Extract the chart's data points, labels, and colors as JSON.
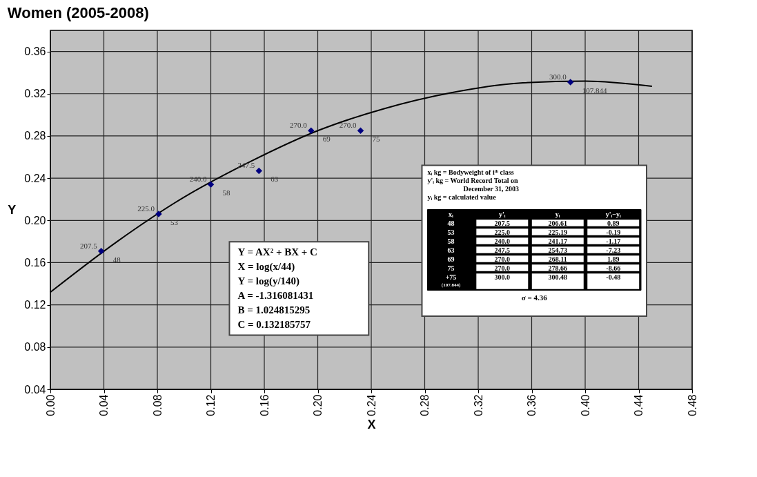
{
  "chart_data": {
    "type": "scatter",
    "title": "Women (2005-2008)",
    "xlabel": "X",
    "ylabel": "Y",
    "xlim": [
      0,
      0.48
    ],
    "ylim": [
      0.04,
      0.38
    ],
    "xticks": [
      {
        "value": 0,
        "label": "0.00"
      },
      {
        "value": 0.04,
        "label": "0.04"
      },
      {
        "value": 0.08,
        "label": "0.08"
      },
      {
        "value": 0.12,
        "label": "0.12"
      },
      {
        "value": 0.16,
        "label": "0.16"
      },
      {
        "value": 0.2,
        "label": "0.20"
      },
      {
        "value": 0.24,
        "label": "0.24"
      },
      {
        "value": 0.28,
        "label": "0.28"
      },
      {
        "value": 0.32,
        "label": "0.32"
      },
      {
        "value": 0.36,
        "label": "0.36"
      },
      {
        "value": 0.4,
        "label": "0.40"
      },
      {
        "value": 0.44,
        "label": "0.44"
      },
      {
        "value": 0.48,
        "label": "0.48"
      }
    ],
    "yticks": [
      0.04,
      0.08,
      0.12,
      0.16,
      {
        "value": 0.2,
        "label": "0.20"
      },
      0.24,
      0.28,
      0.32,
      0.36
    ],
    "grid": true,
    "series": [
      {
        "type": "line",
        "color": "#000000",
        "marker": "none",
        "line_style": "solid",
        "x": [
          0,
          0.05,
          0.1,
          0.15,
          0.2,
          0.25,
          0.3,
          0.35,
          0.4,
          0.45
        ],
        "values": [
          0.132,
          0.18,
          0.222,
          0.256,
          0.285,
          0.306,
          0.321,
          0.33,
          0.332,
          0.327
        ]
      },
      {
        "color": "#000080",
        "marker": "diamond",
        "x": [
          0.038,
          0.081,
          0.12,
          0.156,
          0.195,
          0.232,
          0.389
        ],
        "values": [
          0.171,
          0.206,
          0.234,
          0.247,
          0.285,
          0.285,
          0.331
        ]
      }
    ],
    "annotations": [
      {
        "text": "207.5",
        "x": 0.038,
        "y": 0.171
      },
      {
        "text": "48",
        "x": 0.038,
        "y": 0.171
      },
      {
        "text": "225.0",
        "x": 0.081,
        "y": 0.206
      },
      {
        "text": "53",
        "x": 0.081,
        "y": 0.206
      },
      {
        "text": "240.0",
        "x": 0.12,
        "y": 0.234
      },
      {
        "text": "58",
        "x": 0.12,
        "y": 0.234
      },
      {
        "text": "247.5",
        "x": 0.156,
        "y": 0.247
      },
      {
        "text": "63",
        "x": 0.156,
        "y": 0.247
      },
      {
        "text": "270.0",
        "x": 0.195,
        "y": 0.285
      },
      {
        "text": "69",
        "x": 0.195,
        "y": 0.285
      },
      {
        "text": "270.0",
        "x": 0.232,
        "y": 0.285
      },
      {
        "text": "75",
        "x": 0.232,
        "y": 0.285
      },
      {
        "text": "300.0",
        "x": 0.389,
        "y": 0.331
      },
      {
        "text": "107.844",
        "x": 0.389,
        "y": 0.331
      },
      "Y = AX² + BX + C",
      "X = log(x/44)",
      "Y = log(y/140)",
      "A = -1.316081431",
      "B = 1.024815295",
      "C = 0.132185757",
      "xᵢ kg = Bodyweight of iᵗʰ class",
      "y'ᵢ kg = World Record Total on",
      "December 31, 2003",
      "yᵢ kg = calculated value",
      "xᵢ",
      "y'ᵢ",
      "yᵢ",
      "y'ᵢ−yᵢ",
      "48",
      "207.5",
      "206.61",
      "0.89",
      "53",
      "225.0",
      "225.19",
      "-0.19",
      "58",
      "240.0",
      "241.17",
      "-1.17",
      "63",
      "247.5",
      "254.73",
      "-7.23",
      "69",
      "270.0",
      "268.11",
      "1.89",
      "75",
      "270.0",
      "278.66",
      "-8.66",
      "+75",
      "300.0",
      "300.48",
      "-0.48",
      "(107.844)",
      "σ = 4.36"
    ]
  }
}
